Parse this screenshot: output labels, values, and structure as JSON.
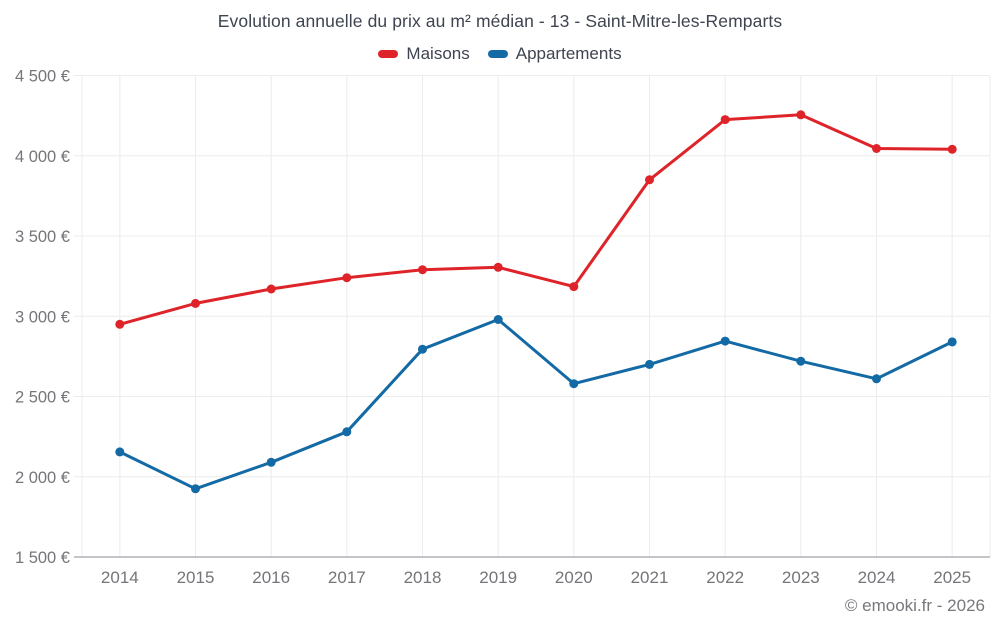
{
  "chart_data": {
    "type": "line",
    "title": "Evolution annuelle du prix au m² médian - 13 - Saint-Mitre-les-Remparts",
    "categories": [
      "2014",
      "2015",
      "2016",
      "2017",
      "2018",
      "2019",
      "2020",
      "2021",
      "2022",
      "2023",
      "2024",
      "2025"
    ],
    "series": [
      {
        "name": "Maisons",
        "color": "#de2329",
        "values": [
          2950,
          3080,
          3170,
          3240,
          3290,
          3305,
          3185,
          3850,
          4225,
          4255,
          4045,
          4040
        ]
      },
      {
        "name": "Appartements",
        "color": "#136aa5",
        "values": [
          2155,
          1925,
          2090,
          2280,
          2795,
          2980,
          2580,
          2700,
          2845,
          2720,
          2610,
          2840
        ]
      }
    ],
    "y_axis": {
      "min": 1500,
      "max": 4500,
      "tick_step": 500,
      "tick_labels": [
        "1 500 €",
        "2 000 €",
        "2 500 €",
        "3 000 €",
        "3 500 €",
        "4 000 €",
        "4 500 €"
      ],
      "unit": "€"
    },
    "x_axis": {
      "label": ""
    },
    "grid": true,
    "legend_position": "top"
  },
  "footer": {
    "copyright": "© emooki.fr - 2026"
  },
  "colors": {
    "background": "#ffffff",
    "gridline": "#ececec",
    "axis_line": "#b2b2b7",
    "tick_text": "#75757a",
    "title_text": "#3e4450"
  }
}
